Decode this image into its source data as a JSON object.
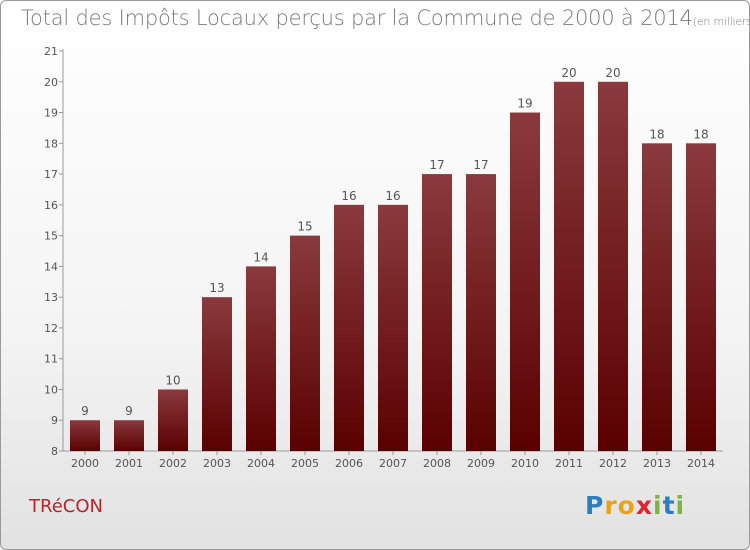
{
  "header": {
    "title": "Total des Impôts Locaux perçus par la Commune de 2000 à 2014",
    "unit": "(en milliers d'€)"
  },
  "footer": {
    "commune": "TRéCON",
    "logo_letters": [
      "P",
      "r",
      "o",
      "x",
      "i",
      "t",
      "i"
    ],
    "logo_colors": [
      "#2a7fc1",
      "#e8a31b",
      "#e8a31b",
      "#d9282f",
      "#7cb342",
      "#2a7fc1",
      "#7cb342"
    ]
  },
  "chart_data": {
    "type": "bar",
    "categories": [
      "2000",
      "2001",
      "2002",
      "2003",
      "2004",
      "2005",
      "2006",
      "2007",
      "2008",
      "2009",
      "2010",
      "2011",
      "2012",
      "2013",
      "2014"
    ],
    "values": [
      9,
      9,
      10,
      13,
      14,
      15,
      16,
      16,
      17,
      17,
      19,
      20,
      20,
      18,
      18
    ],
    "title": "Total des Impôts Locaux perçus par la Commune de 2000 à 2014",
    "xlabel": "",
    "ylabel": "",
    "ylim": [
      8,
      21
    ],
    "yticks": [
      8,
      9,
      10,
      11,
      12,
      13,
      14,
      15,
      16,
      17,
      18,
      19,
      20,
      21
    ],
    "grid": false,
    "bar_color_top": "#8a3a3e",
    "bar_color_bottom": "#5a0000"
  }
}
